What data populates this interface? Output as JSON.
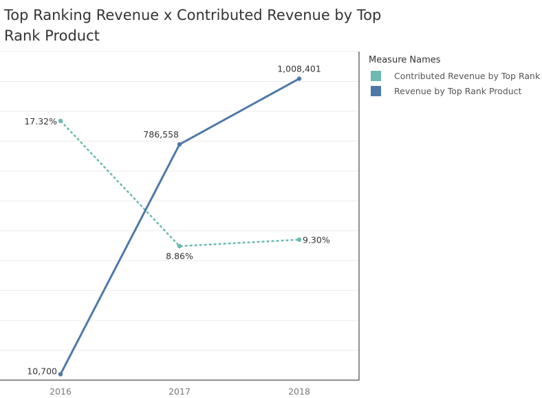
{
  "title": "Top Ranking Revenue x Contributed Revenue by Top Rank Product",
  "legend": {
    "title": "Measure Names",
    "items": [
      {
        "label": "Contributed Revenue by Top Rank",
        "color": "#6cbab0"
      },
      {
        "label": "Revenue by Top Rank Product",
        "color": "#4e79a7"
      }
    ]
  },
  "chart_data": {
    "type": "line",
    "title": "Top Ranking Revenue x Contributed Revenue by Top Rank Product",
    "categories": [
      "2016",
      "2017",
      "2018"
    ],
    "grid": true,
    "legend_position": "right",
    "series": [
      {
        "name": "Contributed Revenue by Top Rank",
        "values": [
          17.32,
          8.86,
          9.3
        ],
        "labels": [
          "17.32%",
          "8.86%",
          "9.30%"
        ],
        "color": "#6cbab0",
        "style": "dashed",
        "unit": "%",
        "ylim": [
          0,
          22
        ]
      },
      {
        "name": "Revenue by Top Rank Product",
        "values": [
          10700,
          786558,
          1008401
        ],
        "labels": [
          "10,700",
          "786,558",
          "1,008,401"
        ],
        "color": "#4e79a7",
        "style": "solid",
        "ylim": [
          0,
          1100000
        ]
      }
    ]
  }
}
